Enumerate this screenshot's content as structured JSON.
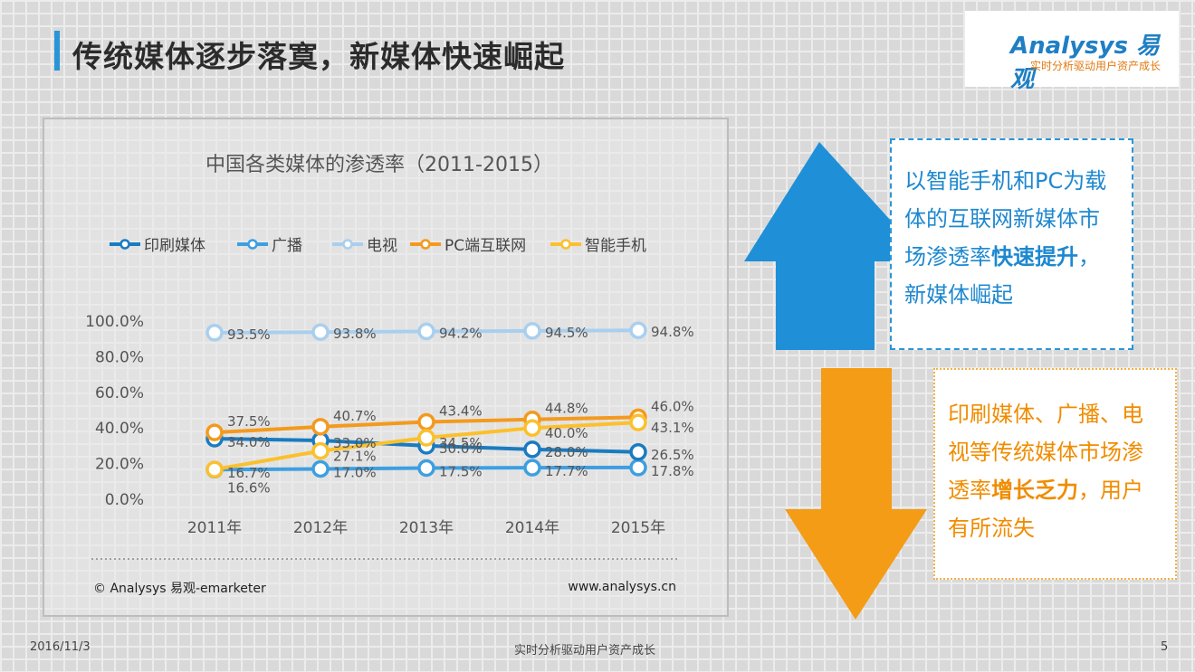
{
  "slide": {
    "title": "传统媒体逐步落寞，新媒体快速崛起",
    "date": "2016/11/3",
    "slogan": "实时分析驱动用户资产成长",
    "page_number": "5"
  },
  "logo": {
    "brand": "Analysys 易观",
    "tagline": "实时分析驱动用户资产成长"
  },
  "chart_source": "© Analysys 易观-emarketer",
  "chart_website": "www.analysys.cn",
  "chart_data": {
    "type": "line",
    "title": "中国各类媒体的渗透率（2011-2015）",
    "categories": [
      "2011年",
      "2012年",
      "2013年",
      "2014年",
      "2015年"
    ],
    "y_ticks": [
      "0.0%",
      "20.0%",
      "40.0%",
      "60.0%",
      "80.0%",
      "100.0%"
    ],
    "ylim": [
      0,
      100
    ],
    "legend_position": "top",
    "series": [
      {
        "name": "印刷媒体",
        "color": "#1a7bc0",
        "values": [
          34.0,
          33.0,
          30.0,
          28.0,
          26.5
        ],
        "labels": [
          "34.0%",
          "33.0%",
          "30.0%",
          "28.0%",
          "26.5%"
        ]
      },
      {
        "name": "广播",
        "color": "#3e9fe0",
        "values": [
          16.6,
          17.0,
          17.5,
          17.7,
          17.8
        ],
        "labels": [
          "16.6%",
          "17.0%",
          "17.5%",
          "17.7%",
          "17.8%"
        ]
      },
      {
        "name": "电视",
        "color": "#a9cfee",
        "values": [
          93.5,
          93.8,
          94.2,
          94.5,
          94.8
        ],
        "labels": [
          "93.5%",
          "93.8%",
          "94.2%",
          "94.5%",
          "94.8%"
        ]
      },
      {
        "name": "PC端互联网",
        "color": "#f39a1e",
        "values": [
          37.5,
          40.7,
          43.4,
          44.8,
          46.0
        ],
        "labels": [
          "37.5%",
          "40.7%",
          "43.4%",
          "44.8%",
          "46.0%"
        ]
      },
      {
        "name": "智能手机",
        "color": "#fbc02d",
        "values": [
          16.7,
          27.1,
          34.5,
          40.0,
          43.1
        ],
        "labels": [
          "16.7%",
          "27.1%",
          "34.5%",
          "40.0%",
          "43.1%"
        ]
      }
    ]
  },
  "callout_up": {
    "text_before": "以智能手机和PC为载体的互联网新媒体市场渗透率",
    "strong": "快速提升",
    "text_after": "，新媒体崛起",
    "color": "#2a95d6"
  },
  "callout_down": {
    "text_before": "印刷媒体、广播、电视等传统媒体市场渗透率",
    "strong": "增长乏力",
    "text_after": "，用户有所流失",
    "color": "#f39c12"
  }
}
